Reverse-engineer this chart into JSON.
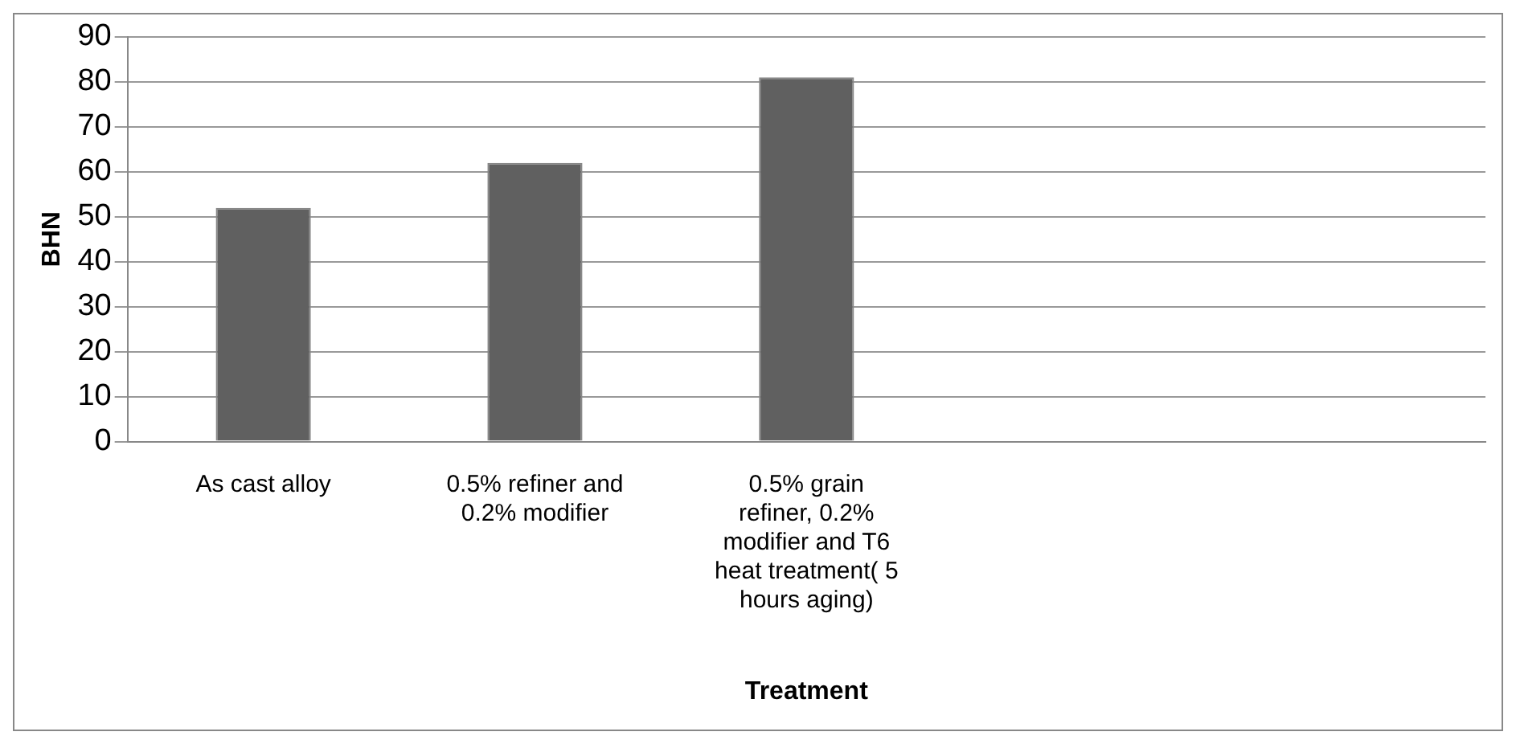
{
  "chart_data": {
    "type": "bar",
    "categories": [
      "As cast alloy",
      "0.5% refiner and 0.2% modifier",
      "0.5% grain refiner, 0.2% modifier and T6 heat treatment( 5 hours aging)",
      null,
      null
    ],
    "values": [
      52,
      62,
      81,
      null,
      null
    ],
    "color": "#606060",
    "xlabel": "Treatment",
    "ylabel": "BHN",
    "ylim": [
      0,
      90
    ],
    "yticks": [
      0,
      10,
      20,
      30,
      40,
      50,
      60,
      70,
      80,
      90
    ],
    "grid": "y",
    "legend": false
  }
}
